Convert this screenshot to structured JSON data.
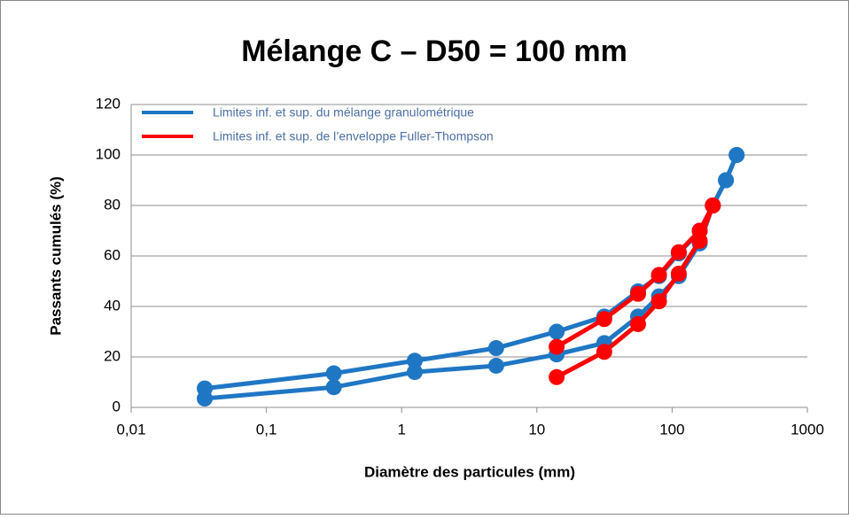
{
  "chart_data": {
    "type": "line",
    "title": "Mélange C – D50 = 100 mm",
    "xlabel": "Diamètre des particules (mm)",
    "ylabel": "Passants cumulés (%)",
    "xscale": "log",
    "xlim": [
      0.01,
      1000
    ],
    "xticks": [
      {
        "value": 0.01,
        "label": "0,01"
      },
      {
        "value": 0.1,
        "label": "0,1"
      },
      1,
      10,
      100,
      1000
    ],
    "ylim": [
      0,
      120
    ],
    "yticks": [
      0,
      20,
      40,
      60,
      80,
      100,
      120
    ],
    "grid": true,
    "legend": "upper left",
    "series": [
      {
        "name": "Limites inf. et sup. du mélange granulométrique",
        "color": "#1f77c4",
        "x": [
          0.035,
          0.315,
          1.25,
          5,
          14,
          31.5,
          56,
          80,
          112,
          160,
          200,
          250,
          300
        ],
        "values": [
          7.5,
          13.5,
          18.5,
          23.5,
          30,
          36,
          46,
          52,
          61,
          70,
          80,
          90,
          100
        ]
      },
      {
        "color": "#1f77c4",
        "x": [
          0.035,
          0.315,
          1.25,
          5,
          14,
          31.5,
          56,
          80,
          112,
          160,
          200,
          250,
          300
        ],
        "values": [
          3.5,
          8,
          14,
          16.5,
          21,
          25.5,
          36,
          44,
          52,
          65,
          80,
          90,
          100
        ]
      },
      {
        "name": "Limites inf. et sup. de l’enveloppe Fuller-Thompson",
        "color": "#ff0000",
        "x": [
          14,
          31.5,
          56,
          80,
          112,
          160,
          200
        ],
        "values": [
          24,
          35,
          45,
          52.5,
          61.5,
          70,
          80
        ]
      },
      {
        "color": "#ff0000",
        "x": [
          14,
          31.5,
          56,
          80,
          112,
          160,
          200
        ],
        "values": [
          12,
          22,
          33,
          42,
          53,
          66,
          80
        ]
      }
    ]
  }
}
